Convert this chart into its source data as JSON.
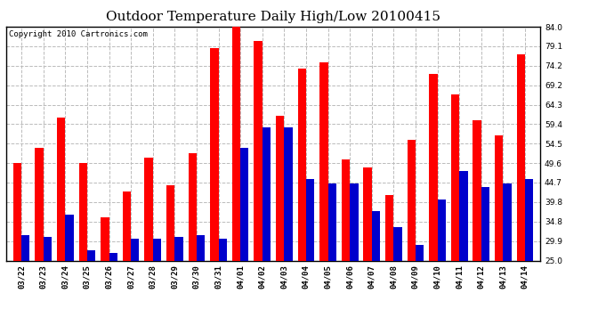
{
  "title": "Outdoor Temperature Daily High/Low 20100415",
  "copyright": "Copyright 2010 Cartronics.com",
  "categories": [
    "03/22",
    "03/23",
    "03/24",
    "03/25",
    "03/26",
    "03/27",
    "03/28",
    "03/29",
    "03/30",
    "03/31",
    "04/01",
    "04/02",
    "04/03",
    "04/04",
    "04/05",
    "04/06",
    "04/07",
    "04/08",
    "04/09",
    "04/10",
    "04/11",
    "04/12",
    "04/13",
    "04/14"
  ],
  "highs": [
    49.5,
    53.5,
    61.0,
    49.5,
    36.0,
    42.5,
    51.0,
    44.0,
    52.0,
    78.5,
    84.0,
    80.5,
    61.5,
    73.5,
    75.0,
    50.5,
    48.5,
    41.5,
    55.5,
    72.0,
    67.0,
    60.5,
    56.5,
    77.0
  ],
  "lows": [
    31.5,
    31.0,
    36.5,
    27.5,
    27.0,
    30.5,
    30.5,
    31.0,
    31.5,
    30.5,
    53.5,
    58.5,
    58.5,
    45.5,
    44.5,
    44.5,
    37.5,
    33.5,
    29.0,
    40.5,
    47.5,
    43.5,
    44.5,
    45.5
  ],
  "high_color": "#ff0000",
  "low_color": "#0000cc",
  "background_color": "#ffffff",
  "grid_color": "#bbbbbb",
  "ylim_min": 25.0,
  "ylim_max": 84.0,
  "yticks": [
    25.0,
    29.9,
    34.8,
    39.8,
    44.7,
    49.6,
    54.5,
    59.4,
    64.3,
    69.2,
    74.2,
    79.1,
    84.0
  ],
  "bar_width": 0.38,
  "title_fontsize": 11,
  "tick_fontsize": 6.5,
  "copyright_fontsize": 6.5
}
